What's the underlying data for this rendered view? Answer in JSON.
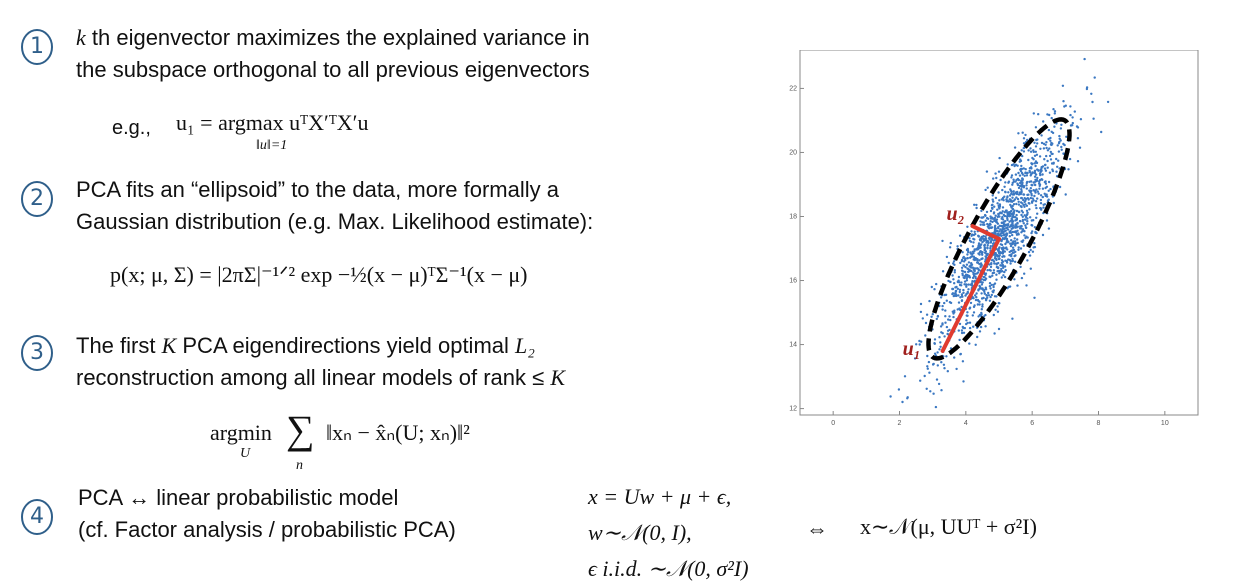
{
  "items": [
    {
      "badge": "1",
      "line1": " th eigenvector maximizes the explained variance in",
      "line1_var": "k",
      "line2": "the subspace orthogonal to all previous eigenvectors",
      "eq_prefix": "e.g.,",
      "eq_main": "u₁ = argmax uᵀX′ᵀX′u",
      "eq_under": "‖u‖=1"
    },
    {
      "badge": "2",
      "line1": "PCA fits an “ellipsoid” to the data, more formally a",
      "line2": "Gaussian distribution (e.g. Max. Likelihood estimate):",
      "eq_main": "p(x; μ, Σ) = |2πΣ|⁻¹ᐟ² exp −½(x − μ)ᵀΣ⁻¹(x − μ)"
    },
    {
      "badge": "3",
      "line1a": "The first ",
      "line1_var": "K",
      "line1b": " PCA eigendirections yield optimal ",
      "line1_var2": "L₂",
      "line2a": "reconstruction among all linear models of rank ≤ ",
      "line2_var": "K",
      "eq_op": "argmin",
      "eq_op_under": "U",
      "eq_sum": "∑",
      "eq_sum_under": "n",
      "eq_body": "‖xₙ − x̂ₙ(U; xₙ)‖²"
    },
    {
      "badge": "4",
      "line1": "PCA ↔ linear probabilistic model",
      "line2": "(cf. Factor analysis / probabilistic PCA)",
      "eq1": "x = Uw + μ + ϵ,",
      "eq2": "w∼𝒩(0, I),",
      "eq3": "ϵ i.i.d. ∼𝒩(0, σ²I)",
      "equiv": "⇔",
      "result": "x∼𝒩(μ, UUᵀ + σ²I)"
    }
  ],
  "chart_data": {
    "type": "scatter",
    "xlim": [
      -1,
      11
    ],
    "ylim": [
      11.8,
      23.2
    ],
    "x_ticks": [
      "0",
      "2",
      "4",
      "6",
      "8",
      "10"
    ],
    "y_ticks": [
      "12",
      "14",
      "16",
      "18",
      "20",
      "22"
    ],
    "grid": false,
    "cluster": {
      "mean_x": 5.0,
      "mean_y": 17.3,
      "major_sd": 2.3,
      "minor_sd": 0.45,
      "angle_deg": 62,
      "count": 1500
    },
    "ellipse": {
      "cx": 5.0,
      "cy": 17.3,
      "semi_major": 4.2,
      "semi_minor": 0.9,
      "angle_deg": 62
    },
    "vectors": [
      {
        "label": "u₁",
        "from": [
          3.3,
          13.8
        ],
        "to": [
          5.0,
          17.3
        ]
      },
      {
        "label": "u₂",
        "from": [
          5.0,
          17.3
        ],
        "to": [
          4.2,
          17.7
        ]
      }
    ],
    "colors": {
      "points": "#3b78c2",
      "ellipse": "#000000",
      "vectors": "#e03b2f",
      "vector_labels": "#a0201d"
    }
  }
}
